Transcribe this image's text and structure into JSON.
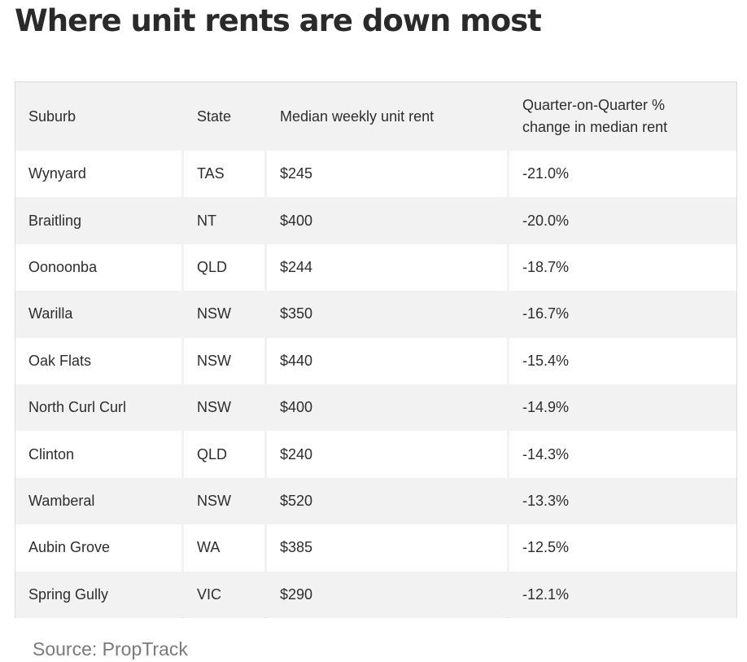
{
  "title": "Where unit rents are down most",
  "table": {
    "headers": {
      "suburb": "Suburb",
      "state": "State",
      "rent": "Median weekly unit rent",
      "change_line1": "Quarter-on-Quarter %",
      "change_line2": "change in median rent"
    },
    "rows": [
      {
        "suburb": "Wynyard",
        "state": "TAS",
        "rent": "$245",
        "change": "-21.0%"
      },
      {
        "suburb": "Braitling",
        "state": "NT",
        "rent": "$400",
        "change": "-20.0%"
      },
      {
        "suburb": "Oonoonba",
        "state": "QLD",
        "rent": "$244",
        "change": "-18.7%"
      },
      {
        "suburb": "Warilla",
        "state": "NSW",
        "rent": "$350",
        "change": "-16.7%"
      },
      {
        "suburb": "Oak Flats",
        "state": "NSW",
        "rent": "$440",
        "change": "-15.4%"
      },
      {
        "suburb": "North Curl Curl",
        "state": "NSW",
        "rent": "$400",
        "change": "-14.9%"
      },
      {
        "suburb": "Clinton",
        "state": "QLD",
        "rent": "$240",
        "change": "-14.3%"
      },
      {
        "suburb": "Wamberal",
        "state": "NSW",
        "rent": "$520",
        "change": "-13.3%"
      },
      {
        "suburb": "Aubin Grove",
        "state": "WA",
        "rent": "$385",
        "change": "-12.5%"
      },
      {
        "suburb": "Spring Gully",
        "state": "VIC",
        "rent": "$290",
        "change": "-12.1%"
      }
    ]
  },
  "source": "Source: PropTrack",
  "colors": {
    "row_alt": "#f2f2f2",
    "row_white": "#ffffff",
    "title": "#2a2a2a",
    "source": "#7a7a7a"
  }
}
